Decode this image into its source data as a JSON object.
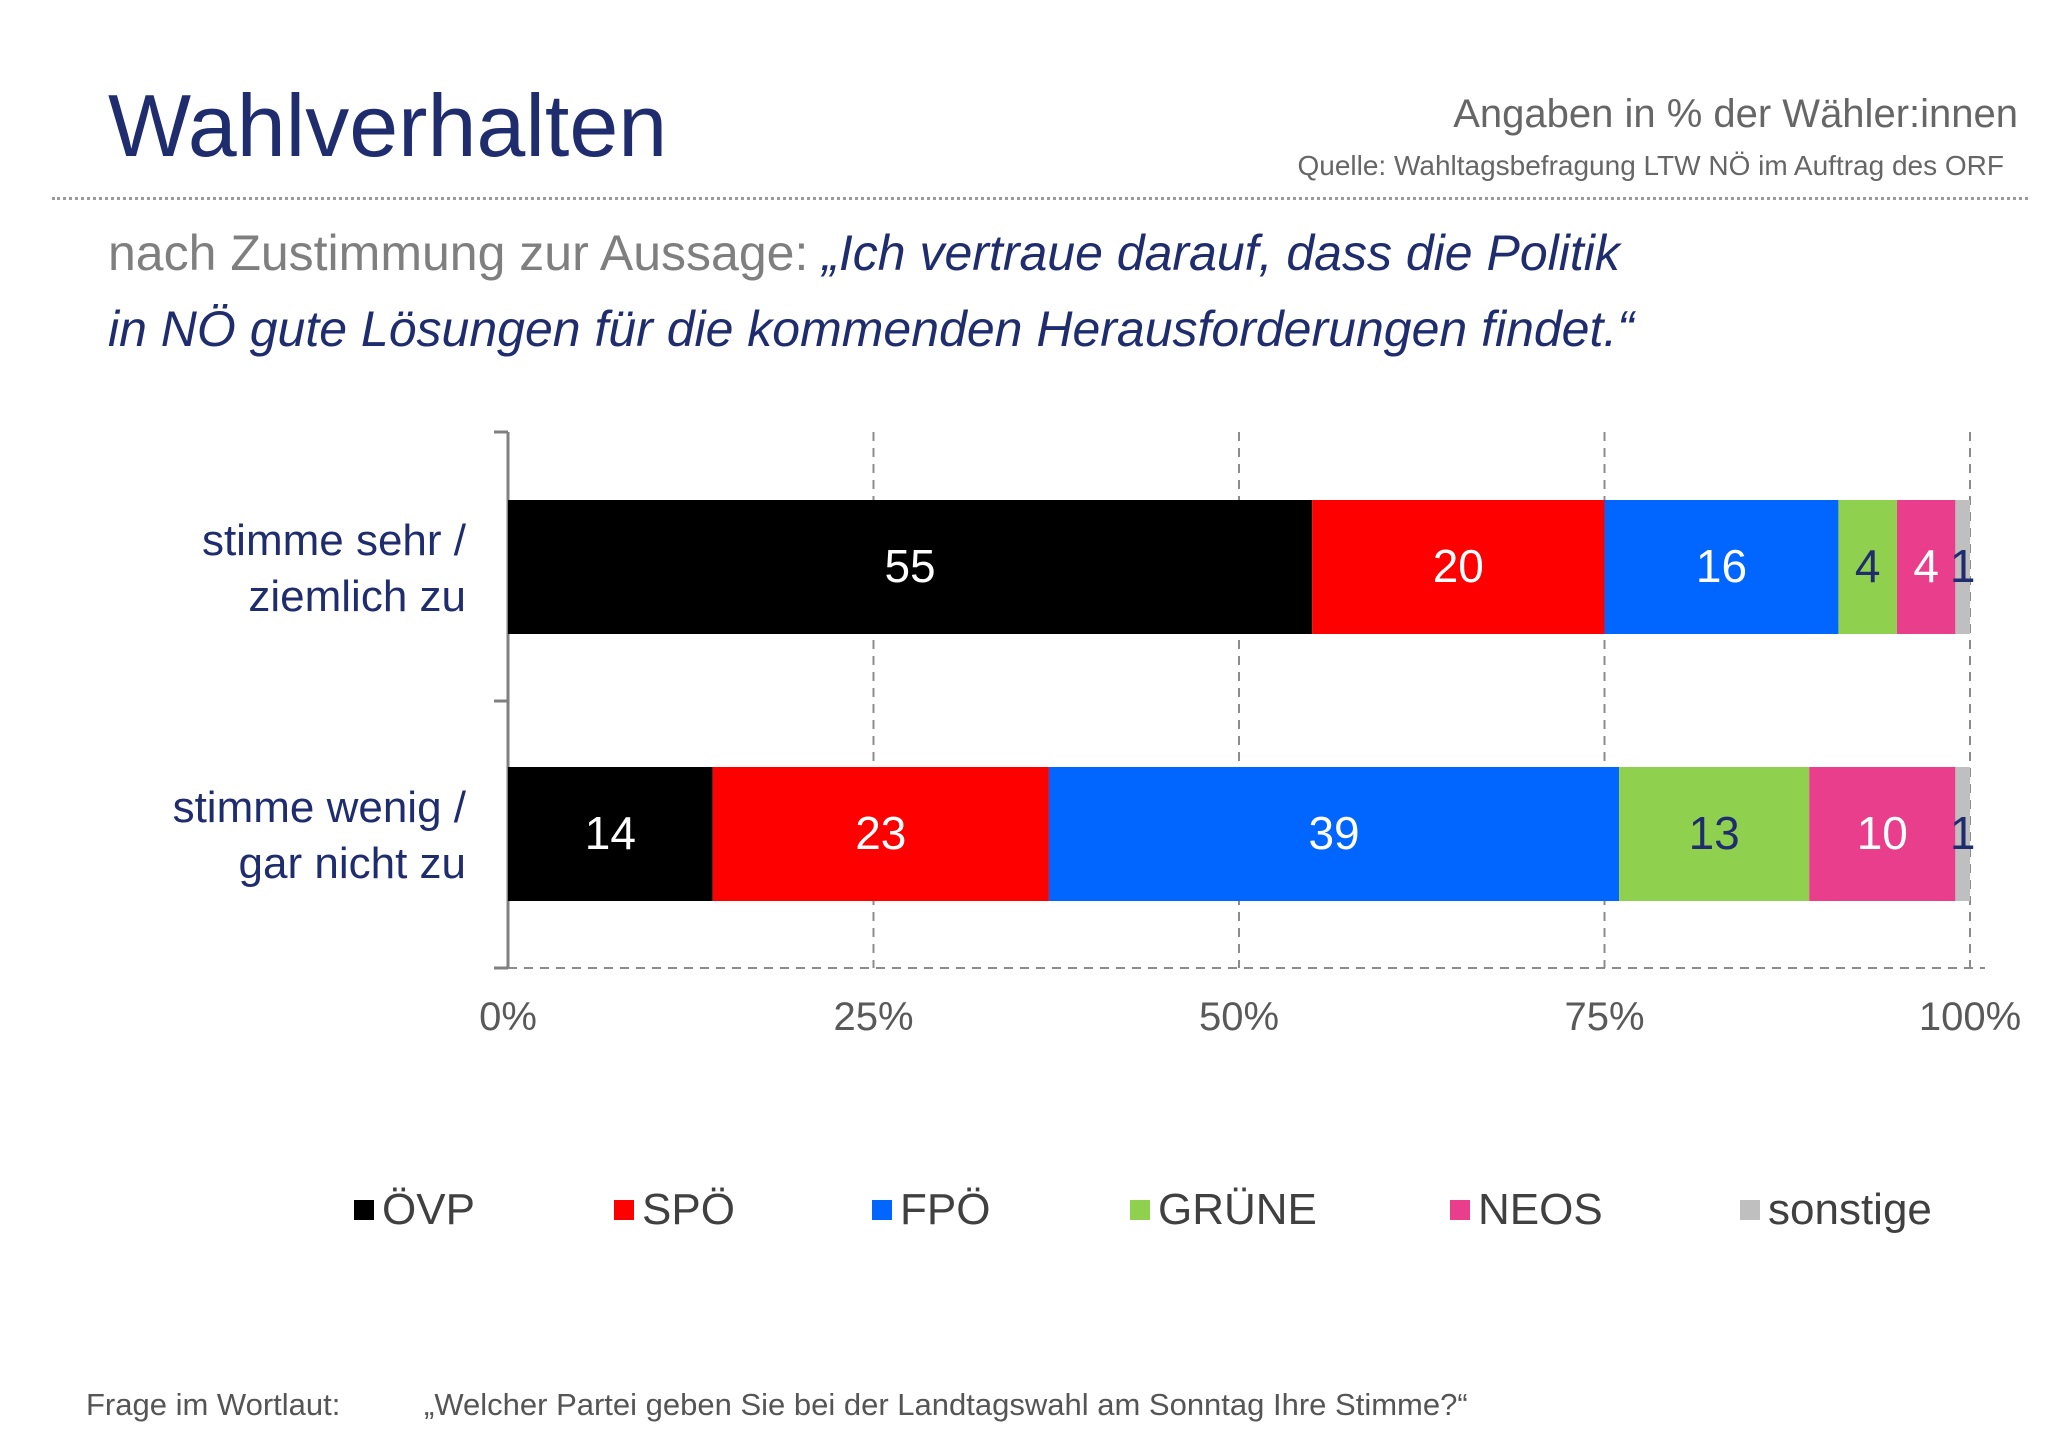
{
  "header": {
    "title": "Wahlverhalten",
    "unit_note": "Angaben in % der Wähler:innen",
    "source_note": "Quelle: Wahltagsbefragung LTW NÖ im Auftrag des ORF",
    "subtitle_lead": "nach Zustimmung zur Aussage: ",
    "subtitle_quote_line1": "„Ich vertraue darauf, dass die Politik",
    "subtitle_quote_line2": "in NÖ gute Lösungen für die kommenden Herausforderungen findet.“"
  },
  "colors": {
    "title": "#1f2d6e",
    "category_text": "#1f2d6e",
    "axis_text": "#595959",
    "grid": "#8c8c8c"
  },
  "chart_data": {
    "type": "bar",
    "orientation": "horizontal",
    "stacked": true,
    "categories": [
      [
        "stimme sehr /",
        "ziemlich zu"
      ],
      [
        "stimme wenig /",
        "gar nicht zu"
      ]
    ],
    "series": [
      {
        "name": "ÖVP",
        "color": "#000000",
        "label_color": "#ffffff",
        "values": [
          55,
          14
        ]
      },
      {
        "name": "SPÖ",
        "color": "#ff0000",
        "label_color": "#ffffff",
        "values": [
          20,
          23
        ]
      },
      {
        "name": "FPÖ",
        "color": "#0066ff",
        "label_color": "#ffffff",
        "values": [
          16,
          39
        ]
      },
      {
        "name": "GRÜNE",
        "color": "#8fd14f",
        "label_color": "#1f2d6e",
        "values": [
          4,
          13
        ]
      },
      {
        "name": "NEOS",
        "color": "#e83e8c",
        "label_color": "#ffffff",
        "values": [
          4,
          10
        ]
      },
      {
        "name": "sonstige",
        "color": "#bfbfbf",
        "label_color": "#1f2d6e",
        "values": [
          1,
          1
        ]
      }
    ],
    "x_ticks": [
      "0%",
      "25%",
      "50%",
      "75%",
      "100%"
    ],
    "xlim": [
      0,
      100
    ],
    "grid": "vertical dashed",
    "legend_position": "bottom"
  },
  "footer": {
    "question_label": "Frage im Wortlaut:",
    "question_text": "„Welcher Partei geben Sie bei der Landtagswahl am Sonntag Ihre Stimme?“"
  }
}
